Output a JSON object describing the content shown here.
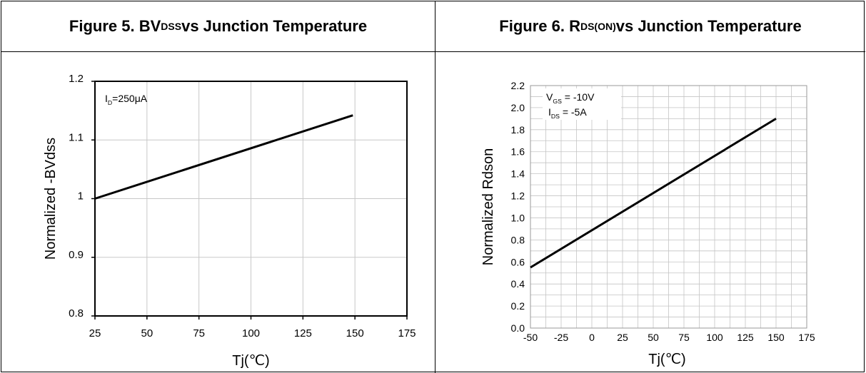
{
  "figures": [
    {
      "title_main": "Figure 5. BV",
      "title_sub": "DSS",
      "title_rest": " vs Junction Temperature"
    },
    {
      "title_main": "Figure 6. R",
      "title_sub": "DS(ON)",
      "title_rest": " vs Junction Temperature"
    }
  ],
  "chart_data": [
    {
      "type": "line",
      "xlabel": "Tj(℃)",
      "ylabel": "Normalized  -BVdss",
      "xlim": [
        25,
        175
      ],
      "ylim": [
        0.8,
        1.2
      ],
      "xticks": [
        25,
        50,
        75,
        100,
        125,
        150,
        175
      ],
      "yticks": [
        0.8,
        0.9,
        1.0,
        1.1,
        1.2
      ],
      "ytick_labels": [
        "0.8",
        "0.9",
        "1",
        "1.1",
        "1.2"
      ],
      "grid": true,
      "annotation": {
        "main": "I",
        "sub": "D",
        "rest": "=250μA"
      },
      "series": [
        {
          "x": [
            25,
            149
          ],
          "y": [
            1.0,
            1.142
          ]
        }
      ]
    },
    {
      "type": "line",
      "xlabel": "Tj(℃)",
      "ylabel": "Normalized  Rdson",
      "xlim": [
        -50,
        175
      ],
      "ylim": [
        0.0,
        2.2
      ],
      "xticks": [
        -50,
        -25,
        0,
        25,
        50,
        75,
        100,
        125,
        150,
        175
      ],
      "yticks": [
        0.0,
        0.2,
        0.4,
        0.6,
        0.8,
        1.0,
        1.2,
        1.4,
        1.6,
        1.8,
        2.0,
        2.2
      ],
      "ytick_labels": [
        "0.0",
        "0.2",
        "0.4",
        "0.6",
        "0.8",
        "1.0",
        "1.2",
        "1.4",
        "1.6",
        "1.8",
        "2.0",
        "2.2"
      ],
      "grid": true,
      "annotations": [
        {
          "main": "V",
          "sub": "GS",
          "rest": " = -10V"
        },
        {
          "main": "I",
          "sub": "DS",
          "rest": " = -5A"
        }
      ],
      "series": [
        {
          "x": [
            -50,
            150
          ],
          "y": [
            0.55,
            1.9
          ]
        }
      ]
    }
  ]
}
